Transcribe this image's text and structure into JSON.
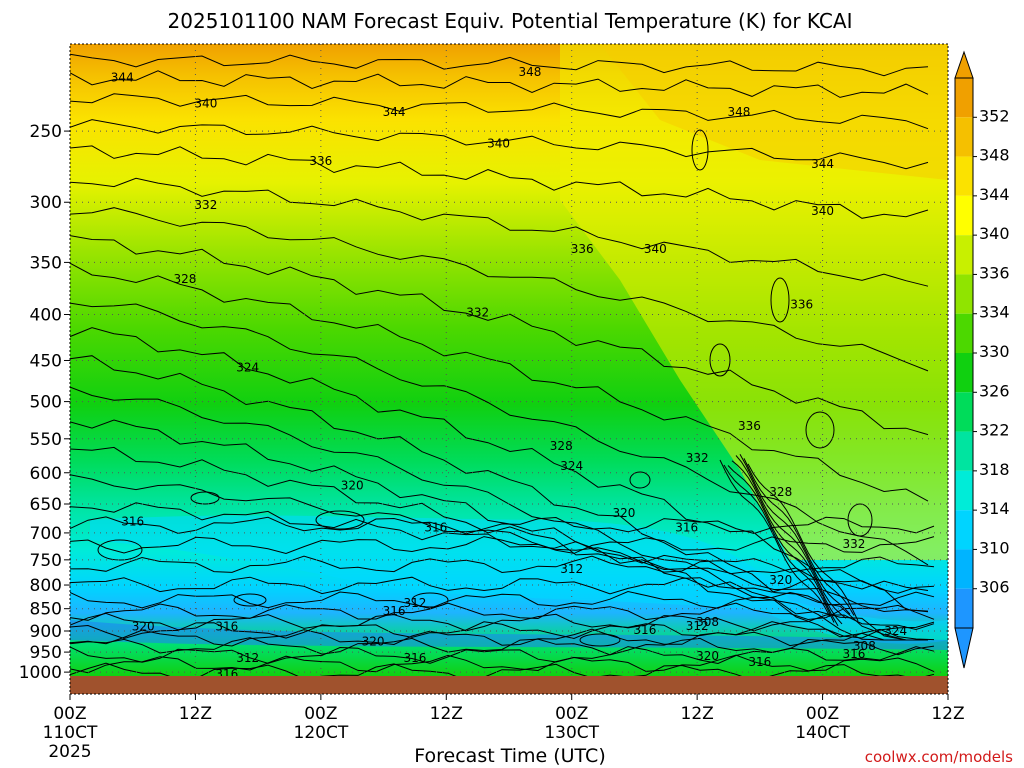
{
  "title": "2025101100 NAM Forecast Equiv. Potential Temperature (K) for KCAI",
  "credit": "coolwx.com/models",
  "chart_data": {
    "type": "heatmap",
    "title": "2025101100 NAM Forecast Equiv. Potential Temperature (K) for KCAI",
    "xlabel": "Forecast Time (UTC)",
    "ylabel": "",
    "x_ticks": [
      {
        "hour": 0,
        "l1": "00Z",
        "l2": "110CT",
        "l3": "2025"
      },
      {
        "hour": 12,
        "l1": "12Z",
        "l2": "",
        "l3": ""
      },
      {
        "hour": 24,
        "l1": "00Z",
        "l2": "120CT",
        "l3": ""
      },
      {
        "hour": 36,
        "l1": "12Z",
        "l2": "",
        "l3": ""
      },
      {
        "hour": 48,
        "l1": "00Z",
        "l2": "130CT",
        "l3": ""
      },
      {
        "hour": 60,
        "l1": "12Z",
        "l2": "",
        "l3": ""
      },
      {
        "hour": 72,
        "l1": "00Z",
        "l2": "140CT",
        "l3": ""
      },
      {
        "hour": 84,
        "l1": "12Z",
        "l2": "",
        "l3": ""
      }
    ],
    "x_range_hours": [
      0,
      84
    ],
    "y_ticks": [
      250,
      300,
      350,
      400,
      450,
      500,
      550,
      600,
      650,
      700,
      750,
      800,
      850,
      900,
      950,
      1000
    ],
    "y_range_hpa": [
      200,
      1010
    ],
    "y_scale": "log pressure (inverted)",
    "colorbar": {
      "labels": [
        352,
        348,
        344,
        340,
        336,
        334,
        330,
        326,
        322,
        318,
        314,
        310,
        306
      ],
      "colors": [
        "#f0a000",
        "#f5c000",
        "#fbe200",
        "#ffff00",
        "#c8f000",
        "#90e400",
        "#4cd800",
        "#10d010",
        "#00dc5a",
        "#00e4a0",
        "#00ecd8",
        "#00d4ff",
        "#00b4ff",
        "#1e96ff"
      ]
    },
    "contour_labels": [
      {
        "v": "344",
        "h": 5,
        "p": 218
      },
      {
        "v": "348",
        "h": 44,
        "p": 215
      },
      {
        "v": "340",
        "h": 13,
        "p": 233
      },
      {
        "v": "344",
        "h": 31,
        "p": 238
      },
      {
        "v": "348",
        "h": 64,
        "p": 238
      },
      {
        "v": "340",
        "h": 41,
        "p": 258
      },
      {
        "v": "336",
        "h": 24,
        "p": 270
      },
      {
        "v": "344",
        "h": 72,
        "p": 272
      },
      {
        "v": "332",
        "h": 13,
        "p": 302
      },
      {
        "v": "340",
        "h": 72,
        "p": 307
      },
      {
        "v": "336",
        "h": 49,
        "p": 338
      },
      {
        "v": "340",
        "h": 56,
        "p": 338
      },
      {
        "v": "328",
        "h": 11,
        "p": 365
      },
      {
        "v": "336",
        "h": 70,
        "p": 390
      },
      {
        "v": "332",
        "h": 39,
        "p": 398
      },
      {
        "v": "324",
        "h": 17,
        "p": 458
      },
      {
        "v": "336",
        "h": 65,
        "p": 532
      },
      {
        "v": "328",
        "h": 47,
        "p": 560
      },
      {
        "v": "332",
        "h": 60,
        "p": 578
      },
      {
        "v": "324",
        "h": 48,
        "p": 590
      },
      {
        "v": "320",
        "h": 27,
        "p": 620
      },
      {
        "v": "328",
        "h": 68,
        "p": 630
      },
      {
        "v": "320",
        "h": 53,
        "p": 665
      },
      {
        "v": "316",
        "h": 6,
        "p": 680
      },
      {
        "v": "316",
        "h": 35,
        "p": 690
      },
      {
        "v": "316",
        "h": 59,
        "p": 690
      },
      {
        "v": "332",
        "h": 75,
        "p": 720
      },
      {
        "v": "312",
        "h": 48,
        "p": 768
      },
      {
        "v": "320",
        "h": 68,
        "p": 790
      },
      {
        "v": "312",
        "h": 33,
        "p": 838
      },
      {
        "v": "316",
        "h": 31,
        "p": 855
      },
      {
        "v": "308",
        "h": 61,
        "p": 880
      },
      {
        "v": "312",
        "h": 60,
        "p": 888
      },
      {
        "v": "320",
        "h": 7,
        "p": 890
      },
      {
        "v": "316",
        "h": 15,
        "p": 890
      },
      {
        "v": "316",
        "h": 55,
        "p": 898
      },
      {
        "v": "324",
        "h": 79,
        "p": 900
      },
      {
        "v": "320",
        "h": 29,
        "p": 925
      },
      {
        "v": "308",
        "h": 76,
        "p": 935
      },
      {
        "v": "316",
        "h": 75,
        "p": 955
      },
      {
        "v": "320",
        "h": 61,
        "p": 960
      },
      {
        "v": "312",
        "h": 17,
        "p": 965
      },
      {
        "v": "316",
        "h": 33,
        "p": 965
      },
      {
        "v": "316",
        "h": 66,
        "p": 975
      },
      {
        "v": "316",
        "h": 15,
        "p": 1005
      }
    ]
  }
}
